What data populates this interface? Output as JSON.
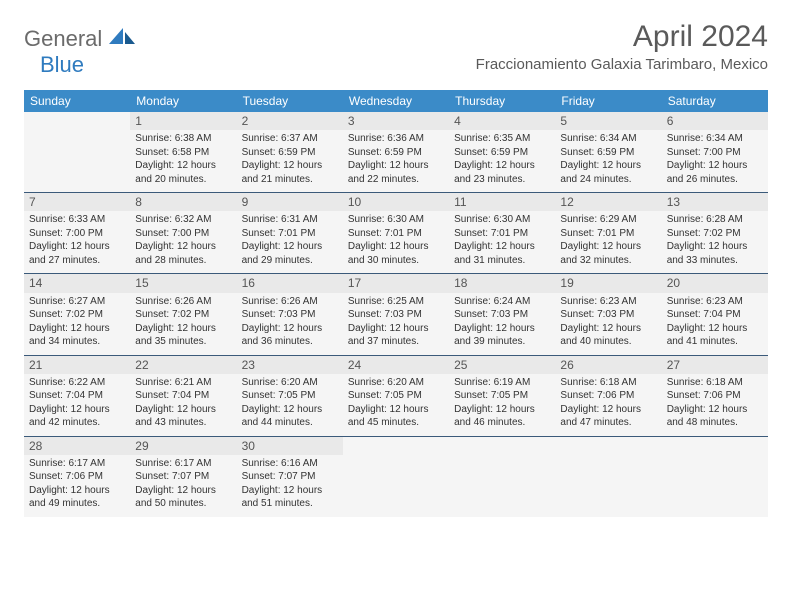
{
  "logo": {
    "general": "General",
    "blue": "Blue"
  },
  "title": "April 2024",
  "location": "Fraccionamiento Galaxia Tarimbaro, Mexico",
  "colors": {
    "header_bg": "#3b8bc8",
    "header_text": "#ffffff",
    "border": "#3b5a7a",
    "cell_bg": "#f5f5f5",
    "daynum_bg": "#e9e9e9",
    "logo_gray": "#6b6b6b",
    "logo_blue": "#2f7bbf"
  },
  "day_headers": [
    "Sunday",
    "Monday",
    "Tuesday",
    "Wednesday",
    "Thursday",
    "Friday",
    "Saturday"
  ],
  "weeks": [
    [
      null,
      {
        "n": "1",
        "sr": "Sunrise: 6:38 AM",
        "ss": "Sunset: 6:58 PM",
        "d1": "Daylight: 12 hours",
        "d2": "and 20 minutes."
      },
      {
        "n": "2",
        "sr": "Sunrise: 6:37 AM",
        "ss": "Sunset: 6:59 PM",
        "d1": "Daylight: 12 hours",
        "d2": "and 21 minutes."
      },
      {
        "n": "3",
        "sr": "Sunrise: 6:36 AM",
        "ss": "Sunset: 6:59 PM",
        "d1": "Daylight: 12 hours",
        "d2": "and 22 minutes."
      },
      {
        "n": "4",
        "sr": "Sunrise: 6:35 AM",
        "ss": "Sunset: 6:59 PM",
        "d1": "Daylight: 12 hours",
        "d2": "and 23 minutes."
      },
      {
        "n": "5",
        "sr": "Sunrise: 6:34 AM",
        "ss": "Sunset: 6:59 PM",
        "d1": "Daylight: 12 hours",
        "d2": "and 24 minutes."
      },
      {
        "n": "6",
        "sr": "Sunrise: 6:34 AM",
        "ss": "Sunset: 7:00 PM",
        "d1": "Daylight: 12 hours",
        "d2": "and 26 minutes."
      }
    ],
    [
      {
        "n": "7",
        "sr": "Sunrise: 6:33 AM",
        "ss": "Sunset: 7:00 PM",
        "d1": "Daylight: 12 hours",
        "d2": "and 27 minutes."
      },
      {
        "n": "8",
        "sr": "Sunrise: 6:32 AM",
        "ss": "Sunset: 7:00 PM",
        "d1": "Daylight: 12 hours",
        "d2": "and 28 minutes."
      },
      {
        "n": "9",
        "sr": "Sunrise: 6:31 AM",
        "ss": "Sunset: 7:01 PM",
        "d1": "Daylight: 12 hours",
        "d2": "and 29 minutes."
      },
      {
        "n": "10",
        "sr": "Sunrise: 6:30 AM",
        "ss": "Sunset: 7:01 PM",
        "d1": "Daylight: 12 hours",
        "d2": "and 30 minutes."
      },
      {
        "n": "11",
        "sr": "Sunrise: 6:30 AM",
        "ss": "Sunset: 7:01 PM",
        "d1": "Daylight: 12 hours",
        "d2": "and 31 minutes."
      },
      {
        "n": "12",
        "sr": "Sunrise: 6:29 AM",
        "ss": "Sunset: 7:01 PM",
        "d1": "Daylight: 12 hours",
        "d2": "and 32 minutes."
      },
      {
        "n": "13",
        "sr": "Sunrise: 6:28 AM",
        "ss": "Sunset: 7:02 PM",
        "d1": "Daylight: 12 hours",
        "d2": "and 33 minutes."
      }
    ],
    [
      {
        "n": "14",
        "sr": "Sunrise: 6:27 AM",
        "ss": "Sunset: 7:02 PM",
        "d1": "Daylight: 12 hours",
        "d2": "and 34 minutes."
      },
      {
        "n": "15",
        "sr": "Sunrise: 6:26 AM",
        "ss": "Sunset: 7:02 PM",
        "d1": "Daylight: 12 hours",
        "d2": "and 35 minutes."
      },
      {
        "n": "16",
        "sr": "Sunrise: 6:26 AM",
        "ss": "Sunset: 7:03 PM",
        "d1": "Daylight: 12 hours",
        "d2": "and 36 minutes."
      },
      {
        "n": "17",
        "sr": "Sunrise: 6:25 AM",
        "ss": "Sunset: 7:03 PM",
        "d1": "Daylight: 12 hours",
        "d2": "and 37 minutes."
      },
      {
        "n": "18",
        "sr": "Sunrise: 6:24 AM",
        "ss": "Sunset: 7:03 PM",
        "d1": "Daylight: 12 hours",
        "d2": "and 39 minutes."
      },
      {
        "n": "19",
        "sr": "Sunrise: 6:23 AM",
        "ss": "Sunset: 7:03 PM",
        "d1": "Daylight: 12 hours",
        "d2": "and 40 minutes."
      },
      {
        "n": "20",
        "sr": "Sunrise: 6:23 AM",
        "ss": "Sunset: 7:04 PM",
        "d1": "Daylight: 12 hours",
        "d2": "and 41 minutes."
      }
    ],
    [
      {
        "n": "21",
        "sr": "Sunrise: 6:22 AM",
        "ss": "Sunset: 7:04 PM",
        "d1": "Daylight: 12 hours",
        "d2": "and 42 minutes."
      },
      {
        "n": "22",
        "sr": "Sunrise: 6:21 AM",
        "ss": "Sunset: 7:04 PM",
        "d1": "Daylight: 12 hours",
        "d2": "and 43 minutes."
      },
      {
        "n": "23",
        "sr": "Sunrise: 6:20 AM",
        "ss": "Sunset: 7:05 PM",
        "d1": "Daylight: 12 hours",
        "d2": "and 44 minutes."
      },
      {
        "n": "24",
        "sr": "Sunrise: 6:20 AM",
        "ss": "Sunset: 7:05 PM",
        "d1": "Daylight: 12 hours",
        "d2": "and 45 minutes."
      },
      {
        "n": "25",
        "sr": "Sunrise: 6:19 AM",
        "ss": "Sunset: 7:05 PM",
        "d1": "Daylight: 12 hours",
        "d2": "and 46 minutes."
      },
      {
        "n": "26",
        "sr": "Sunrise: 6:18 AM",
        "ss": "Sunset: 7:06 PM",
        "d1": "Daylight: 12 hours",
        "d2": "and 47 minutes."
      },
      {
        "n": "27",
        "sr": "Sunrise: 6:18 AM",
        "ss": "Sunset: 7:06 PM",
        "d1": "Daylight: 12 hours",
        "d2": "and 48 minutes."
      }
    ],
    [
      {
        "n": "28",
        "sr": "Sunrise: 6:17 AM",
        "ss": "Sunset: 7:06 PM",
        "d1": "Daylight: 12 hours",
        "d2": "and 49 minutes."
      },
      {
        "n": "29",
        "sr": "Sunrise: 6:17 AM",
        "ss": "Sunset: 7:07 PM",
        "d1": "Daylight: 12 hours",
        "d2": "and 50 minutes."
      },
      {
        "n": "30",
        "sr": "Sunrise: 6:16 AM",
        "ss": "Sunset: 7:07 PM",
        "d1": "Daylight: 12 hours",
        "d2": "and 51 minutes."
      },
      null,
      null,
      null,
      null
    ]
  ]
}
